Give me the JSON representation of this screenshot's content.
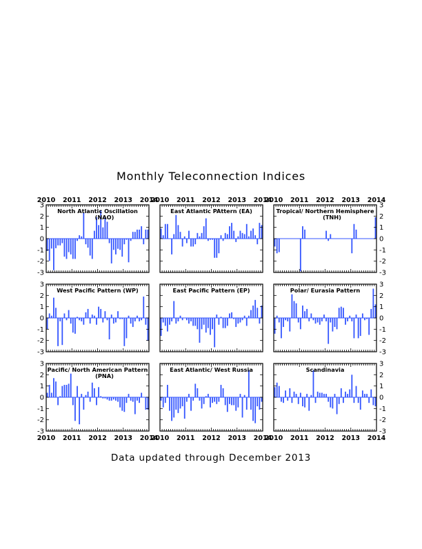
{
  "page": {
    "title": "Monthly Teleconnection Indices",
    "footer": "Data updated through December 2013"
  },
  "colors": {
    "bar": "#3355ff",
    "axis": "#000000",
    "zero_line": "#3355ff"
  },
  "chart_data": [
    {
      "type": "bar",
      "title": "North Atlantic Oscillation (NAO)",
      "xlabel": "",
      "ylabel": "",
      "xlim": [
        2010,
        2014
      ],
      "ylim": [
        -3,
        3
      ],
      "x_ticks": [
        "2010",
        "2011",
        "2012",
        "2013",
        "2014"
      ],
      "y_ticks": [
        "3",
        "2",
        "1",
        "0",
        "-1",
        "-2",
        "-3"
      ],
      "categories": [
        "Jan 2010",
        "Feb 2010",
        "Mar 2010",
        "Apr 2010",
        "May 2010",
        "Jun 2010",
        "Jul 2010",
        "Aug 2010",
        "Sep 2010",
        "Oct 2010",
        "Nov 2010",
        "Dec 2010",
        "Jan 2011",
        "Feb 2011",
        "Mar 2011",
        "Apr 2011",
        "May 2011",
        "Jun 2011",
        "Jul 2011",
        "Aug 2011",
        "Sep 2011",
        "Oct 2011",
        "Nov 2011",
        "Dec 2011",
        "Jan 2012",
        "Feb 2012",
        "Mar 2012",
        "Apr 2012",
        "May 2012",
        "Jun 2012",
        "Jul 2012",
        "Aug 2012",
        "Sep 2012",
        "Oct 2012",
        "Nov 2012",
        "Dec 2012",
        "Jan 2013",
        "Feb 2013",
        "Mar 2013",
        "Apr 2013",
        "May 2013",
        "Jun 2013",
        "Jul 2013",
        "Aug 2013",
        "Sep 2013",
        "Oct 2013",
        "Nov 2013",
        "Dec 2013"
      ],
      "values": [
        -1.1,
        -1.98,
        -0.88,
        -2.8,
        -0.85,
        -0.6,
        -0.6,
        -0.4,
        -1.6,
        -1.8,
        -1.2,
        -1.4,
        -1.8,
        -1.8,
        -0.2,
        0.3,
        0.2,
        2.3,
        -0.5,
        -0.8,
        -1.5,
        -1.8,
        0.7,
        1.9,
        1.2,
        2.5,
        1.0,
        1.9,
        1.5,
        -0.4,
        -2.2,
        -1.0,
        -1.4,
        -0.9,
        -1.0,
        -1.6,
        -0.5,
        -0.1,
        -2.1,
        -0.2,
        0.6,
        0.6,
        0.8,
        0.8,
        1.1,
        -0.5,
        0.8,
        0.8
      ]
    },
    {
      "type": "bar",
      "title": "East Atlantic PAttern (EA)",
      "xlabel": "",
      "ylabel": "",
      "xlim": [
        2010,
        2014
      ],
      "ylim": [
        -3,
        3
      ],
      "x_ticks": [
        "2010",
        "2011",
        "2012",
        "2013",
        "2014"
      ],
      "y_ticks": [
        "3",
        "2",
        "1",
        "0",
        "-1",
        "-2",
        "-3"
      ],
      "categories": [
        "Jan 2010",
        "Feb 2010",
        "Mar 2010",
        "Apr 2010",
        "May 2010",
        "Jun 2010",
        "Jul 2010",
        "Aug 2010",
        "Sep 2010",
        "Oct 2010",
        "Nov 2010",
        "Dec 2010",
        "Jan 2011",
        "Feb 2011",
        "Mar 2011",
        "Apr 2011",
        "May 2011",
        "Jun 2011",
        "Jul 2011",
        "Aug 2011",
        "Sep 2011",
        "Oct 2011",
        "Nov 2011",
        "Dec 2011",
        "Jan 2012",
        "Feb 2012",
        "Mar 2012",
        "Apr 2012",
        "May 2012",
        "Jun 2012",
        "Jul 2012",
        "Aug 2012",
        "Sep 2012",
        "Oct 2012",
        "Nov 2012",
        "Dec 2012",
        "Jan 2013",
        "Feb 2013",
        "Mar 2013",
        "Apr 2013",
        "May 2013",
        "Jun 2013",
        "Jul 2013",
        "Aug 2013",
        "Sep 2013",
        "Oct 2013",
        "Nov 2013",
        "Dec 2013"
      ],
      "values": [
        0.9,
        0.3,
        1.3,
        1.3,
        0.0,
        -1.4,
        0.4,
        2.1,
        1.2,
        0.6,
        -0.7,
        0.2,
        -0.4,
        0.7,
        -0.7,
        -0.7,
        -0.5,
        0.5,
        0.2,
        0.5,
        1.1,
        1.8,
        -0.2,
        -0.1,
        -0.1,
        -1.7,
        -1.7,
        -1.3,
        0.3,
        -0.2,
        0.5,
        0.4,
        1.1,
        1.4,
        0.7,
        -0.3,
        0.2,
        0.7,
        0.5,
        0.4,
        1.3,
        0.2,
        0.7,
        0.9,
        0.3,
        -0.5,
        1.4,
        1.2
      ]
    },
    {
      "type": "bar",
      "title": "Tropical/ Northern Hemisphere (TNH)",
      "xlabel": "",
      "ylabel": "",
      "xlim": [
        2010,
        2014
      ],
      "ylim": [
        -3,
        3
      ],
      "x_ticks": [
        "2010",
        "2011",
        "2012",
        "2013",
        "2014"
      ],
      "y_ticks": [
        "3",
        "2",
        "1",
        "0",
        "-1",
        "-2",
        "-3"
      ],
      "categories": [
        "Jan 2010",
        "Feb 2010",
        "Mar 2010",
        "Apr 2010",
        "May 2010",
        "Jun 2010",
        "Jul 2010",
        "Aug 2010",
        "Sep 2010",
        "Oct 2010",
        "Nov 2010",
        "Dec 2010",
        "Jan 2011",
        "Feb 2011",
        "Mar 2011",
        "Apr 2011",
        "May 2011",
        "Jun 2011",
        "Jul 2011",
        "Aug 2011",
        "Sep 2011",
        "Oct 2011",
        "Nov 2011",
        "Dec 2011",
        "Jan 2012",
        "Feb 2012",
        "Mar 2012",
        "Apr 2012",
        "May 2012",
        "Jun 2012",
        "Jul 2012",
        "Aug 2012",
        "Sep 2012",
        "Oct 2012",
        "Nov 2012",
        "Dec 2012",
        "Jan 2013",
        "Feb 2013",
        "Mar 2013",
        "Apr 2013",
        "May 2013",
        "Jun 2013",
        "Jul 2013",
        "Aug 2013",
        "Sep 2013",
        "Oct 2013",
        "Nov 2013",
        "Dec 2013"
      ],
      "values": [
        -0.7,
        -1.3,
        -1.2,
        0,
        0,
        0,
        0,
        0,
        0,
        0,
        0,
        0,
        -2.9,
        1.1,
        0.8,
        0,
        0,
        0,
        0,
        0,
        0,
        0,
        0,
        0,
        0.7,
        -0.2,
        0.4,
        0,
        0,
        0,
        0,
        0,
        0,
        0,
        0,
        0,
        -1.3,
        1.3,
        0.8,
        0,
        0,
        0,
        0,
        0,
        0,
        0,
        0,
        1.9
      ]
    },
    {
      "type": "bar",
      "title": "West Pacific Pattern (WP)",
      "xlabel": "",
      "ylabel": "",
      "xlim": [
        2010,
        2014
      ],
      "ylim": [
        -3,
        3
      ],
      "x_ticks": [
        "2010",
        "2011",
        "2012",
        "2013",
        "2014"
      ],
      "y_ticks": [
        "3",
        "2",
        "1",
        "0",
        "-1",
        "-2",
        "-3"
      ],
      "categories": [
        "Jan 2010",
        "Feb 2010",
        "Mar 2010",
        "Apr 2010",
        "May 2010",
        "Jun 2010",
        "Jul 2010",
        "Aug 2010",
        "Sep 2010",
        "Oct 2010",
        "Nov 2010",
        "Dec 2010",
        "Jan 2011",
        "Feb 2011",
        "Mar 2011",
        "Apr 2011",
        "May 2011",
        "Jun 2011",
        "Jul 2011",
        "Aug 2011",
        "Sep 2011",
        "Oct 2011",
        "Nov 2011",
        "Dec 2011",
        "Jan 2012",
        "Feb 2012",
        "Mar 2012",
        "Apr 2012",
        "May 2012",
        "Jun 2012",
        "Jul 2012",
        "Aug 2012",
        "Sep 2012",
        "Oct 2012",
        "Nov 2012",
        "Dec 2012",
        "Jan 2013",
        "Feb 2013",
        "Mar 2013",
        "Apr 2013",
        "May 2013",
        "Jun 2013",
        "Jul 2013",
        "Aug 2013",
        "Sep 2013",
        "Oct 2013",
        "Nov 2013",
        "Dec 2013"
      ],
      "values": [
        -1.0,
        0.4,
        0.2,
        1.8,
        0.9,
        -2.5,
        -0.3,
        -2.4,
        0.4,
        -0.2,
        0.7,
        -0.5,
        -1.3,
        -1.4,
        0.1,
        -0.2,
        -0.3,
        -0.6,
        0.5,
        0.8,
        -0.5,
        0.3,
        0.2,
        -0.6,
        1.0,
        0.8,
        -0.4,
        0.6,
        -0.2,
        -1.9,
        0.3,
        -0.5,
        -0.4,
        0.6,
        -0.1,
        -0.1,
        -2.5,
        -1.8,
        0.2,
        -0.5,
        -0.8,
        -0.3,
        0.2,
        -0.3,
        -0.2,
        1.9,
        -0.6,
        -2.0
      ]
    },
    {
      "type": "bar",
      "title": "East Pacific Pattern (EP)",
      "xlabel": "",
      "ylabel": "",
      "xlim": [
        2010,
        2014
      ],
      "ylim": [
        -3,
        3
      ],
      "x_ticks": [
        "2010",
        "2011",
        "2012",
        "2013",
        "2014"
      ],
      "y_ticks": [
        "3",
        "2",
        "1",
        "0",
        "-1",
        "-2",
        "-3"
      ],
      "categories": [
        "Jan 2010",
        "Feb 2010",
        "Mar 2010",
        "Apr 2010",
        "May 2010",
        "Jun 2010",
        "Jul 2010",
        "Aug 2010",
        "Sep 2010",
        "Oct 2010",
        "Nov 2010",
        "Dec 2010",
        "Jan 2011",
        "Feb 2011",
        "Mar 2011",
        "Apr 2011",
        "May 2011",
        "Jun 2011",
        "Jul 2011",
        "Aug 2011",
        "Sep 2011",
        "Oct 2011",
        "Nov 2011",
        "Dec 2011",
        "Jan 2012",
        "Feb 2012",
        "Mar 2012",
        "Apr 2012",
        "May 2012",
        "Jun 2012",
        "Jul 2012",
        "Aug 2012",
        "Sep 2012",
        "Oct 2012",
        "Nov 2012",
        "Dec 2012",
        "Jan 2013",
        "Feb 2013",
        "Mar 2013",
        "Apr 2013",
        "May 2013",
        "Jun 2013",
        "Jul 2013",
        "Aug 2013",
        "Sep 2013",
        "Oct 2013",
        "Nov 2013",
        "Dec 2013"
      ],
      "values": [
        -1.6,
        -0.4,
        -0.7,
        -1.2,
        -0.6,
        -0.3,
        1.5,
        -0.5,
        -0.3,
        0.2,
        -0.2,
        0.0,
        -0.2,
        -0.5,
        -0.3,
        -0.7,
        -0.7,
        -1.0,
        -2.2,
        -1.0,
        -0.6,
        -1.3,
        -0.9,
        -1.5,
        -1.0,
        -2.6,
        0.3,
        -0.6,
        0.1,
        -0.9,
        -0.9,
        -0.7,
        0.4,
        0.5,
        -0.1,
        -0.8,
        -0.5,
        -0.4,
        -0.2,
        0.2,
        -0.7,
        0.2,
        0.7,
        1.1,
        1.6,
        0.9,
        -0.5,
        1.1
      ]
    },
    {
      "type": "bar",
      "title": "Polar/ Eurasia Pattern",
      "xlabel": "",
      "ylabel": "",
      "xlim": [
        2010,
        2014
      ],
      "ylim": [
        -3,
        3
      ],
      "x_ticks": [
        "2010",
        "2011",
        "2012",
        "2013",
        "2014"
      ],
      "y_ticks": [
        "3",
        "2",
        "1",
        "0",
        "-1",
        "-2",
        "-3"
      ],
      "categories": [
        "Jan 2010",
        "Feb 2010",
        "Mar 2010",
        "Apr 2010",
        "May 2010",
        "Jun 2010",
        "Jul 2010",
        "Aug 2010",
        "Sep 2010",
        "Oct 2010",
        "Nov 2010",
        "Dec 2010",
        "Jan 2011",
        "Feb 2011",
        "Mar 2011",
        "Apr 2011",
        "May 2011",
        "Jun 2011",
        "Jul 2011",
        "Aug 2011",
        "Sep 2011",
        "Oct 2011",
        "Nov 2011",
        "Dec 2011",
        "Jan 2012",
        "Feb 2012",
        "Mar 2012",
        "Apr 2012",
        "May 2012",
        "Jun 2012",
        "Jul 2012",
        "Aug 2012",
        "Sep 2012",
        "Oct 2012",
        "Nov 2012",
        "Dec 2012",
        "Jan 2013",
        "Feb 2013",
        "Mar 2013",
        "Apr 2013",
        "May 2013",
        "Jun 2013",
        "Jul 2013",
        "Aug 2013",
        "Sep 2013",
        "Oct 2013",
        "Nov 2013",
        "Dec 2013"
      ],
      "values": [
        -1.4,
        0.2,
        -0.4,
        -1.8,
        -0.8,
        -0.2,
        -0.3,
        -1.2,
        2.1,
        1.5,
        1.3,
        -0.4,
        -1.0,
        1.1,
        0.6,
        0.8,
        -0.3,
        0.4,
        -0.2,
        -0.5,
        -0.4,
        -0.6,
        -0.3,
        0.3,
        -0.3,
        -2.3,
        -0.4,
        -1.2,
        -0.8,
        -1.0,
        0.9,
        1.0,
        0.9,
        -0.6,
        -0.3,
        0.2,
        -0.3,
        -1.8,
        0.3,
        -1.8,
        -1.6,
        0.4,
        -0.2,
        -0.1,
        -1.5,
        0.8,
        2.6,
        1.2
      ]
    },
    {
      "type": "bar",
      "title": "Pacific/ North American Pattern (PNA)",
      "xlabel": "",
      "ylabel": "",
      "xlim": [
        2010,
        2014
      ],
      "ylim": [
        -3,
        3
      ],
      "x_ticks": [
        "2010",
        "2011",
        "2012",
        "2013",
        "2014"
      ],
      "y_ticks": [
        "3",
        "2",
        "1",
        "0",
        "-1",
        "-2",
        "-3"
      ],
      "categories": [
        "Jan 2010",
        "Feb 2010",
        "Mar 2010",
        "Apr 2010",
        "May 2010",
        "Jun 2010",
        "Jul 2010",
        "Aug 2010",
        "Sep 2010",
        "Oct 2010",
        "Nov 2010",
        "Dec 2010",
        "Jan 2011",
        "Feb 2011",
        "Mar 2011",
        "Apr 2011",
        "May 2011",
        "Jun 2011",
        "Jul 2011",
        "Aug 2011",
        "Sep 2011",
        "Oct 2011",
        "Nov 2011",
        "Dec 2011",
        "Jan 2012",
        "Feb 2012",
        "Mar 2012",
        "Apr 2012",
        "May 2012",
        "Jun 2012",
        "Jul 2012",
        "Aug 2012",
        "Sep 2012",
        "Oct 2012",
        "Nov 2012",
        "Dec 2012",
        "Jan 2013",
        "Feb 2013",
        "Mar 2013",
        "Apr 2013",
        "May 2013",
        "Jun 2013",
        "Jul 2013",
        "Aug 2013",
        "Sep 2013",
        "Oct 2013",
        "Nov 2013",
        "Dec 2013"
      ],
      "values": [
        0.4,
        1.1,
        0.4,
        1.7,
        1.4,
        -0.7,
        0.1,
        1.0,
        1.1,
        1.1,
        1.2,
        2.1,
        -0.7,
        -2.1,
        1.0,
        -2.4,
        0.3,
        -1.1,
        0.2,
        0.5,
        -0.4,
        1.3,
        0.8,
        -0.7,
        0.9,
        0.1,
        -0.1,
        -0.1,
        -0.2,
        -0.3,
        -0.3,
        -0.2,
        -0.3,
        -0.4,
        -0.9,
        -1.2,
        -1.3,
        -0.5,
        0.3,
        -0.3,
        -0.4,
        -1.5,
        -0.3,
        -0.5,
        0.4,
        0.0,
        -1.1,
        -1.1
      ]
    },
    {
      "type": "bar",
      "title": "East Atlantic/ West Russia",
      "xlabel": "",
      "ylabel": "",
      "xlim": [
        2010,
        2014
      ],
      "ylim": [
        -3,
        3
      ],
      "x_ticks": [
        "2010",
        "2011",
        "2012",
        "2013",
        "2014"
      ],
      "y_ticks": [
        "3",
        "2",
        "1",
        "0",
        "-1",
        "-2",
        "-3"
      ],
      "categories": [
        "Jan 2010",
        "Feb 2010",
        "Mar 2010",
        "Apr 2010",
        "May 2010",
        "Jun 2010",
        "Jul 2010",
        "Aug 2010",
        "Sep 2010",
        "Oct 2010",
        "Nov 2010",
        "Dec 2010",
        "Jan 2011",
        "Feb 2011",
        "Mar 2011",
        "Apr 2011",
        "May 2011",
        "Jun 2011",
        "Jul 2011",
        "Aug 2011",
        "Sep 2011",
        "Oct 2011",
        "Nov 2011",
        "Dec 2011",
        "Jan 2012",
        "Feb 2012",
        "Mar 2012",
        "Apr 2012",
        "May 2012",
        "Jun 2012",
        "Jul 2012",
        "Aug 2012",
        "Sep 2012",
        "Oct 2012",
        "Nov 2012",
        "Dec 2012",
        "Jan 2013",
        "Feb 2013",
        "Mar 2013",
        "Apr 2013",
        "May 2013",
        "Jun 2013",
        "Jul 2013",
        "Aug 2013",
        "Sep 2013",
        "Oct 2013",
        "Nov 2013",
        "Dec 2013"
      ],
      "values": [
        -0.3,
        -0.9,
        -0.5,
        1.1,
        -1.2,
        -2.1,
        -1.8,
        -1.1,
        -1.4,
        -1.0,
        -0.8,
        -1.9,
        -0.4,
        0.3,
        -1.2,
        -0.3,
        1.2,
        0.8,
        -0.3,
        -1.0,
        -0.6,
        0.1,
        0.3,
        -0.9,
        -0.5,
        -0.4,
        -0.6,
        -0.4,
        1.1,
        0.8,
        -0.7,
        -1.3,
        -0.6,
        -0.7,
        -0.7,
        -1.2,
        -0.9,
        0.3,
        -1.8,
        0.2,
        -1.1,
        2.4,
        -1.1,
        -2.1,
        -2.3,
        -0.8,
        -1.1,
        -0.4
      ]
    },
    {
      "type": "bar",
      "title": "Scandinavia",
      "xlabel": "",
      "ylabel": "",
      "xlim": [
        2010,
        2014
      ],
      "ylim": [
        -3,
        3
      ],
      "x_ticks": [
        "2010",
        "2011",
        "2012",
        "2013",
        "2014"
      ],
      "y_ticks": [
        "3",
        "2",
        "1",
        "0",
        "-1",
        "-2",
        "-3"
      ],
      "categories": [
        "Jan 2010",
        "Feb 2010",
        "Mar 2010",
        "Apr 2010",
        "May 2010",
        "Jun 2010",
        "Jul 2010",
        "Aug 2010",
        "Sep 2010",
        "Oct 2010",
        "Nov 2010",
        "Dec 2010",
        "Jan 2011",
        "Feb 2011",
        "Mar 2011",
        "Apr 2011",
        "May 2011",
        "Jun 2011",
        "Jul 2011",
        "Aug 2011",
        "Sep 2011",
        "Oct 2011",
        "Nov 2011",
        "Dec 2011",
        "Jan 2012",
        "Feb 2012",
        "Mar 2012",
        "Apr 2012",
        "May 2012",
        "Jun 2012",
        "Jul 2012",
        "Aug 2012",
        "Sep 2012",
        "Oct 2012",
        "Nov 2012",
        "Dec 2012",
        "Jan 2013",
        "Feb 2013",
        "Mar 2013",
        "Apr 2013",
        "May 2013",
        "Jun 2013",
        "Jul 2013",
        "Aug 2013",
        "Sep 2013",
        "Oct 2013",
        "Nov 2013",
        "Dec 2013"
      ],
      "values": [
        0.9,
        1.3,
        1.0,
        -0.4,
        -0.5,
        0.6,
        -0.3,
        0.8,
        -0.5,
        0.5,
        0.3,
        -0.6,
        0.4,
        -0.8,
        -0.9,
        0.3,
        -1.2,
        0.2,
        2.4,
        -0.5,
        0.5,
        0.4,
        0.4,
        0.3,
        0.3,
        -0.4,
        -0.9,
        -1.0,
        0.3,
        -1.5,
        -0.6,
        0.8,
        -0.5,
        0.5,
        0.3,
        0.7,
        2.0,
        -0.5,
        1.0,
        -0.5,
        -1.1,
        0.6,
        0.3,
        0.3,
        -0.5,
        0.7,
        -0.7,
        -0.8
      ]
    }
  ]
}
